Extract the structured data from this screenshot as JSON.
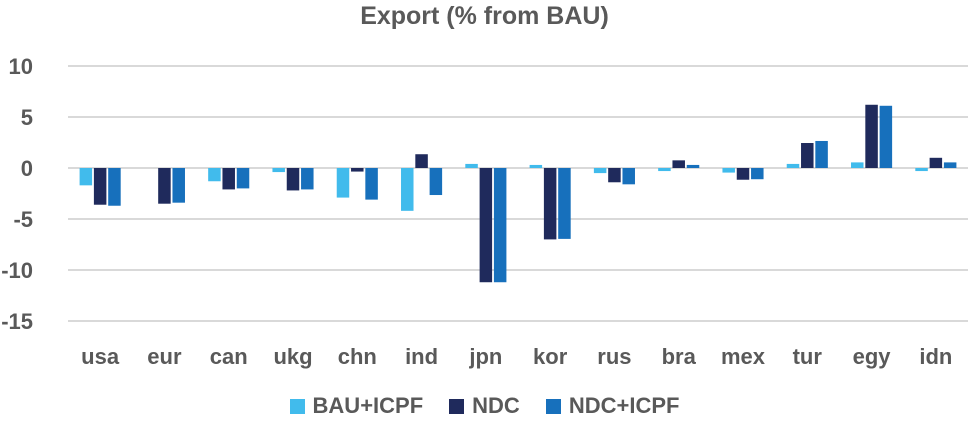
{
  "chart_data": {
    "type": "bar",
    "title": "Export (% from BAU)",
    "xlabel": "",
    "ylabel": "",
    "ylim": [
      -15,
      10
    ],
    "yticks": [
      10,
      5,
      0,
      -5,
      -10,
      -15
    ],
    "grid": true,
    "legend_position": "bottom",
    "categories": [
      "usa",
      "eur",
      "can",
      "ukg",
      "chn",
      "ind",
      "jpn",
      "kor",
      "rus",
      "bra",
      "mex",
      "tur",
      "egy",
      "idn"
    ],
    "series": [
      {
        "name": "BAU+ICPF",
        "color": "#41BBEC",
        "values": [
          -1.7,
          0.0,
          -1.3,
          -0.4,
          -2.9,
          -4.2,
          0.4,
          0.3,
          -0.5,
          -0.3,
          -0.45,
          0.4,
          0.55,
          -0.3
        ]
      },
      {
        "name": "NDC",
        "color": "#1F2A5C",
        "values": [
          -3.6,
          -3.5,
          -2.1,
          -2.2,
          -0.35,
          1.35,
          -11.2,
          -7.0,
          -1.4,
          0.75,
          -1.15,
          2.45,
          6.2,
          1.0
        ]
      },
      {
        "name": "NDC+ICPF",
        "color": "#1770BC",
        "values": [
          -3.7,
          -3.4,
          -2.0,
          -2.1,
          -3.1,
          -2.65,
          -11.2,
          -6.95,
          -1.6,
          0.3,
          -1.1,
          2.65,
          6.1,
          0.55
        ]
      }
    ]
  },
  "legend": {
    "items": [
      {
        "label": "BAU+ICPF",
        "color": "#41BBEC"
      },
      {
        "label": "NDC",
        "color": "#1F2A5C"
      },
      {
        "label": "NDC+ICPF",
        "color": "#1770BC"
      }
    ]
  }
}
